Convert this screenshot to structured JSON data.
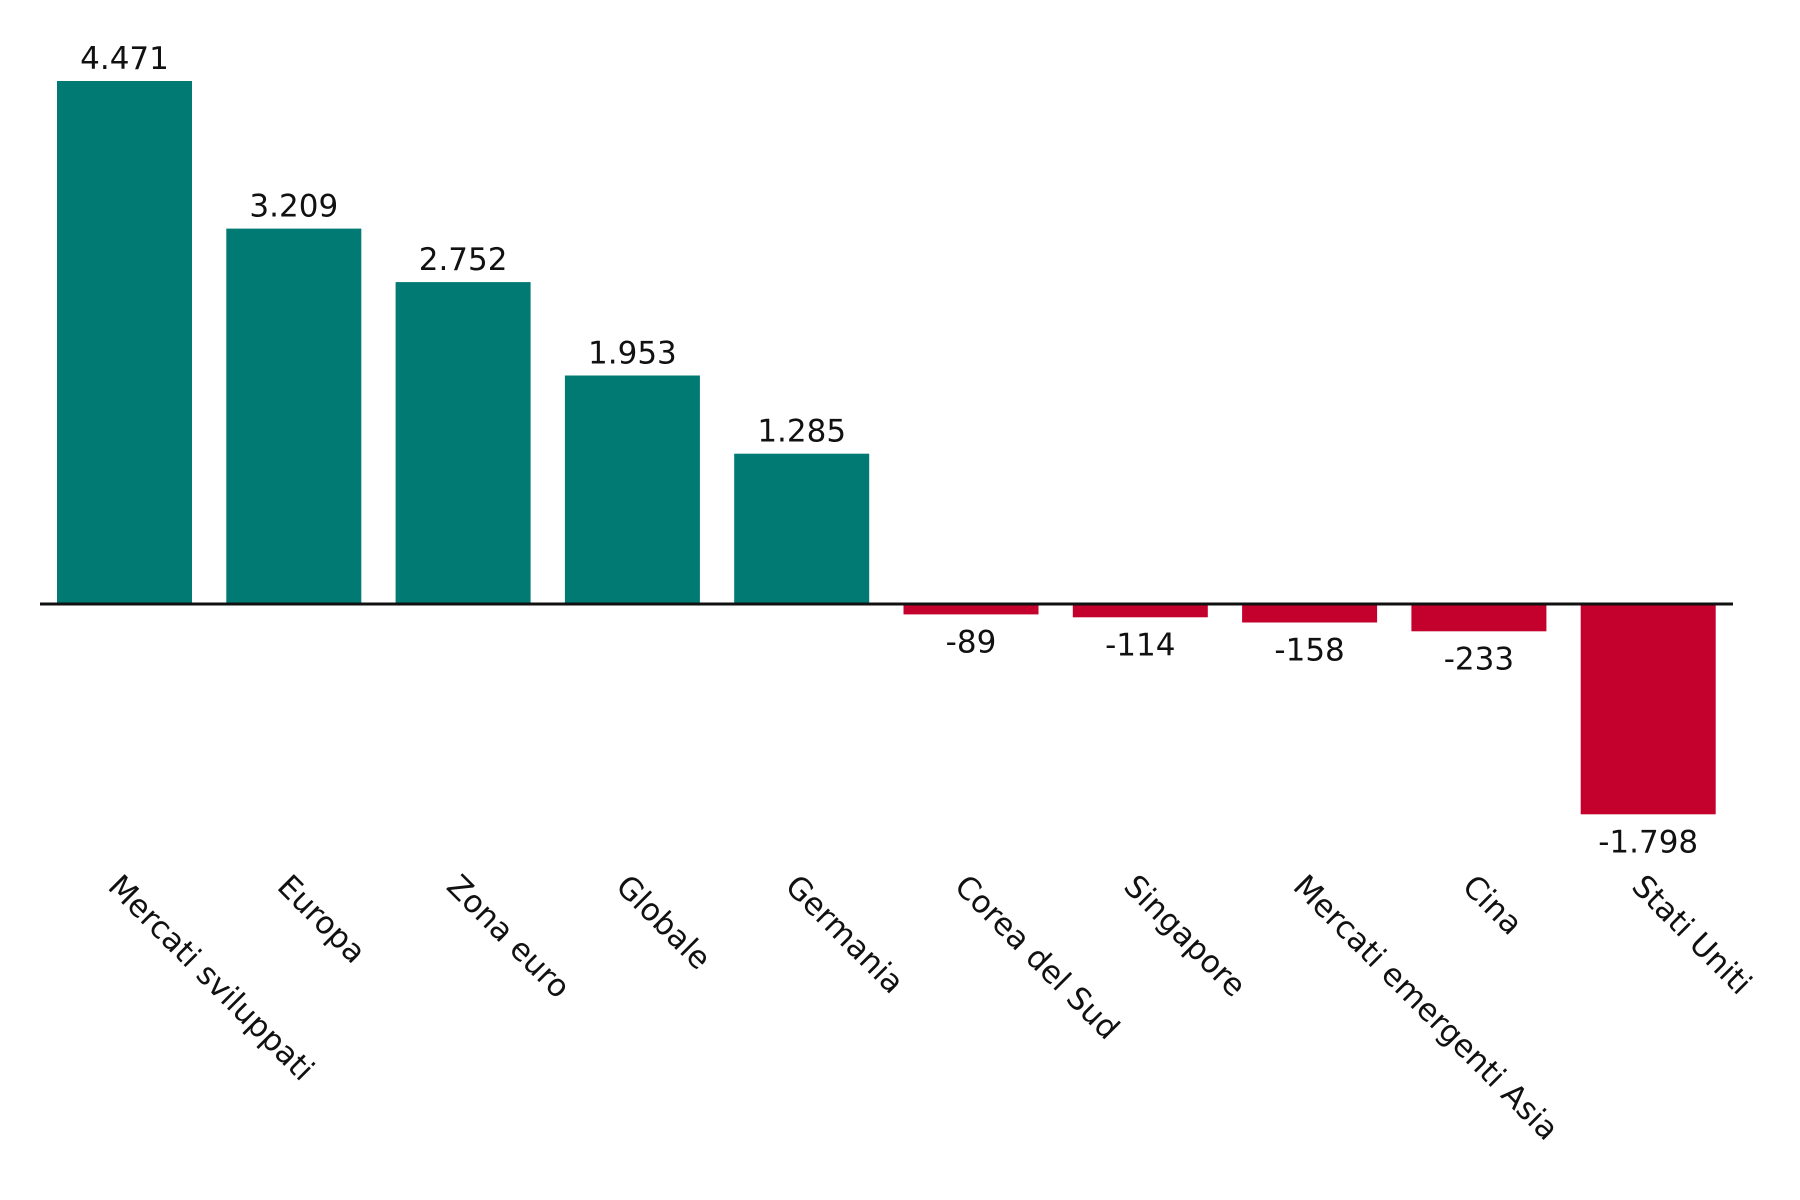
{
  "chart_data": {
    "type": "bar",
    "categories": [
      "Mercati sviluppati",
      "Europa",
      "Zona euro",
      "Globale",
      "Germania",
      "Corea del Sud",
      "Singapore",
      "Mercati emergenti Asia",
      "Cina",
      "Stati Uniti"
    ],
    "values": [
      4471,
      3209,
      2752,
      1953,
      1285,
      -89,
      -114,
      -158,
      -233,
      -1798
    ],
    "value_labels": [
      "4.471",
      "3.209",
      "2.752",
      "1.953",
      "1.285",
      "-89",
      "-114",
      "-158",
      "-233",
      "-1.798"
    ],
    "title": "",
    "xlabel": "",
    "ylabel": "",
    "ylim": [
      -1798,
      4471
    ],
    "grid": false,
    "legend": "none",
    "colors": {
      "positive": "#007a73",
      "negative": "#c4002d",
      "axis": "#111111"
    }
  }
}
